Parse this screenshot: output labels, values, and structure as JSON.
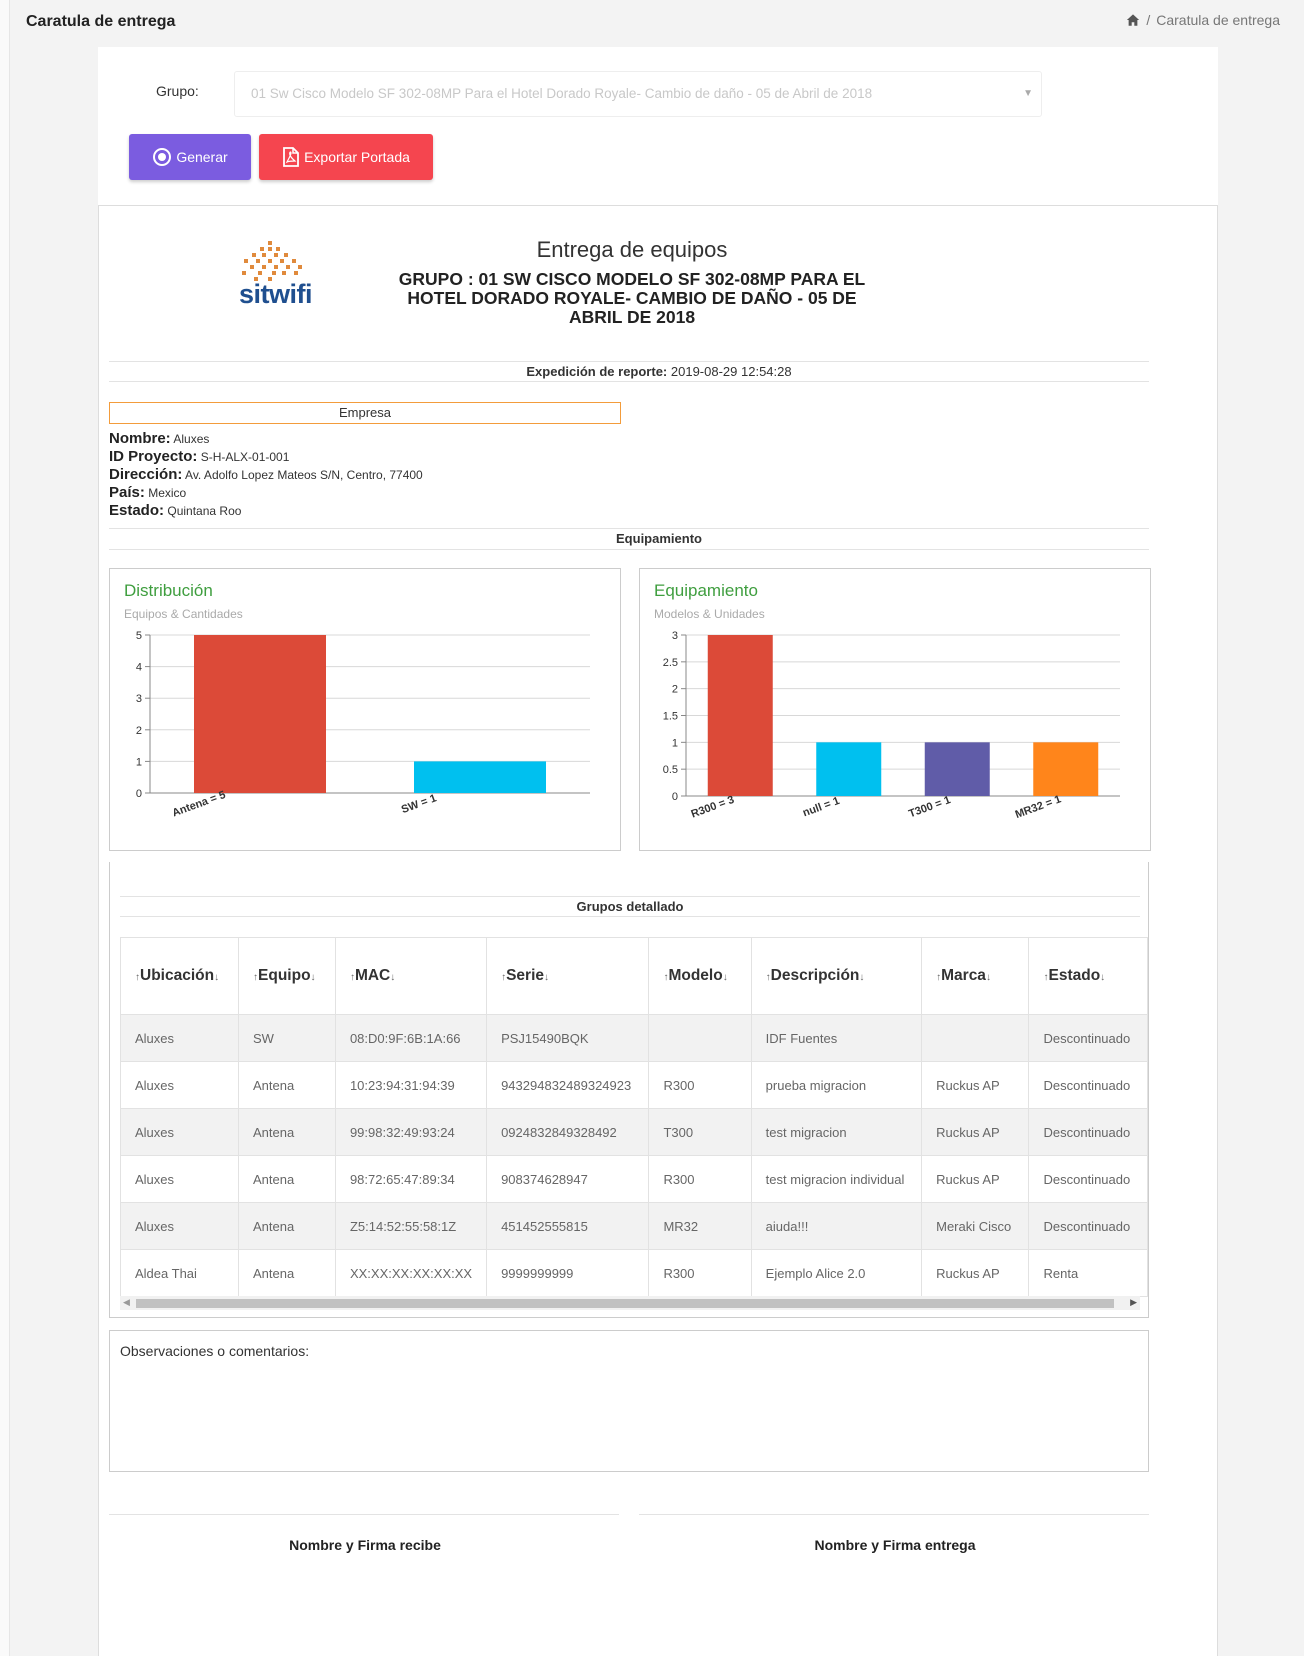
{
  "header": {
    "title": "Caratula de entrega",
    "breadcrumb_current": "Caratula de entrega",
    "home_icon": "home-icon"
  },
  "form": {
    "grupo_label": "Grupo:",
    "grupo_value": "01 Sw Cisco Modelo SF 302-08MP Para el Hotel Dorado Royale- Cambio de daño - 05 de Abril de 2018",
    "generar_label": "Generar",
    "exportar_label": "Exportar Portada",
    "colors": {
      "generar": "#7b5ce0",
      "exportar": "#f5454f"
    }
  },
  "report": {
    "logo_text": "sitwifi",
    "title": "Entrega de equipos",
    "subtitle": "GRUPO : 01 SW CISCO MODELO SF 302-08MP PARA EL HOTEL DORADO ROYALE- CAMBIO DE DAÑO - 05 DE ABRIL DE 2018",
    "expedicion_label": "Expedición de reporte:",
    "expedicion_value": "2019-08-29 12:54:28",
    "empresa_header": "Empresa",
    "info": [
      {
        "label": "Nombre:",
        "value": "Aluxes"
      },
      {
        "label": "ID Proyecto:",
        "value": "S-H-ALX-01-001"
      },
      {
        "label": "Dirección:",
        "value": "Av. Adolfo Lopez Mateos S/N, Centro, 77400"
      },
      {
        "label": "País:",
        "value": "Mexico"
      },
      {
        "label": "Estado:",
        "value": "Quintana Roo"
      }
    ],
    "equipamiento_header": "Equipamiento",
    "grupos_header": "Grupos detallado",
    "observaciones_label": "Observaciones o comentarios:",
    "firma_recibe": "Nombre y Firma recibe",
    "firma_entrega": "Nombre y Firma entrega"
  },
  "chart_data": [
    {
      "type": "bar",
      "title": "Distribución",
      "subtitle": "Equipos & Cantidades",
      "categories": [
        "Antena = 5",
        "SW = 1"
      ],
      "values": [
        5,
        1
      ],
      "colors": [
        "#dc4a38",
        "#00c0ef"
      ],
      "ylim": [
        0,
        5
      ],
      "yticks": [
        "0",
        "1",
        "2",
        "3",
        "4",
        "5"
      ],
      "grid": true
    },
    {
      "type": "bar",
      "title": "Equipamiento",
      "subtitle": "Modelos & Unidades",
      "categories": [
        "R300 = 3",
        "null = 1",
        "T300 = 1",
        "MR32 = 1"
      ],
      "values": [
        3,
        1,
        1,
        1
      ],
      "colors": [
        "#dc4a38",
        "#00c0ef",
        "#605ca8",
        "#ff851b"
      ],
      "ylim": [
        0,
        3
      ],
      "yticks": [
        "0",
        "0.5",
        "1",
        "1.5",
        "2",
        "2.5",
        "3"
      ],
      "grid": true
    }
  ],
  "table": {
    "headers": [
      "Ubicación",
      "Equipo",
      "MAC",
      "Serie",
      "Modelo",
      "Descripción",
      "Marca",
      "Estado"
    ],
    "rows": [
      [
        "Aluxes",
        "SW",
        "08:D0:9F:6B:1A:66",
        "PSJ15490BQK",
        "",
        "IDF Fuentes",
        "",
        "Descontinuado"
      ],
      [
        "Aluxes",
        "Antena",
        "10:23:94:31:94:39",
        "943294832489324923",
        "R300",
        "prueba migracion",
        "Ruckus AP",
        "Descontinuado"
      ],
      [
        "Aluxes",
        "Antena",
        "99:98:32:49:93:24",
        "0924832849328492",
        "T300",
        "test migracion",
        "Ruckus AP",
        "Descontinuado"
      ],
      [
        "Aluxes",
        "Antena",
        "98:72:65:47:89:34",
        "908374628947",
        "R300",
        "test migracion individual",
        "Ruckus AP",
        "Descontinuado"
      ],
      [
        "Aluxes",
        "Antena",
        "Z5:14:52:55:58:1Z",
        "451452555815",
        "MR32",
        "aiuda!!!",
        "Meraki Cisco",
        "Descontinuado"
      ],
      [
        "Aldea Thai",
        "Antena",
        "XX:XX:XX:XX:XX:XX",
        "9999999999",
        "R300",
        "Ejemplo Alice 2.0",
        "Ruckus AP",
        "Renta"
      ]
    ]
  }
}
